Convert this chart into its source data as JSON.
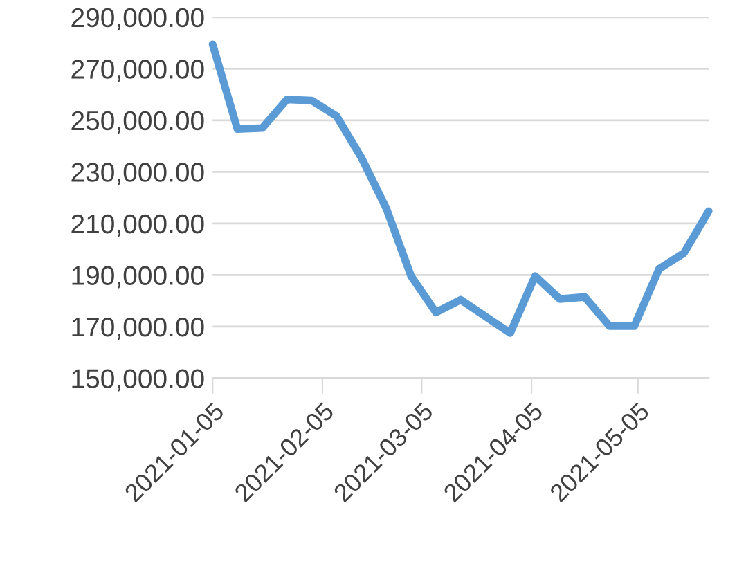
{
  "chart_data": {
    "type": "line",
    "x": [
      "2021-01-05",
      "2021-01-12",
      "2021-01-19",
      "2021-01-26",
      "2021-02-02",
      "2021-02-09",
      "2021-02-16",
      "2021-02-23",
      "2021-03-02",
      "2021-03-09",
      "2021-03-16",
      "2021-03-23",
      "2021-03-30",
      "2021-04-06",
      "2021-04-13",
      "2021-04-20",
      "2021-04-27",
      "2021-05-04",
      "2021-05-11",
      "2021-05-18",
      "2021-05-25"
    ],
    "series": [
      {
        "color": "#5b9bd5",
        "values": [
          279500,
          246600,
          247000,
          258100,
          257700,
          251600,
          235500,
          215900,
          189600,
          175500,
          180400,
          173900,
          167500,
          189600,
          180700,
          181500,
          170200,
          170200,
          192400,
          198500,
          214800
        ]
      }
    ],
    "xlim": [
      "2021-01-05",
      "2021-05-25"
    ],
    "xticks": [
      "2021-01-05",
      "2021-02-05",
      "2021-03-05",
      "2021-04-05",
      "2021-05-05"
    ],
    "ylim": [
      150000,
      290000
    ],
    "yticks": [
      {
        "value": 150000,
        "label": "150,000.00"
      },
      {
        "value": 170000,
        "label": "170,000.00"
      },
      {
        "value": 190000,
        "label": "190,000.00"
      },
      {
        "value": 210000,
        "label": "210,000.00"
      },
      {
        "value": 230000,
        "label": "230,000.00"
      },
      {
        "value": 250000,
        "label": "250,000.00"
      },
      {
        "value": 270000,
        "label": "270,000.00"
      },
      {
        "value": 290000,
        "label": "290,000.00"
      }
    ],
    "grid": "y",
    "marker": "none",
    "line_style": "solid"
  }
}
